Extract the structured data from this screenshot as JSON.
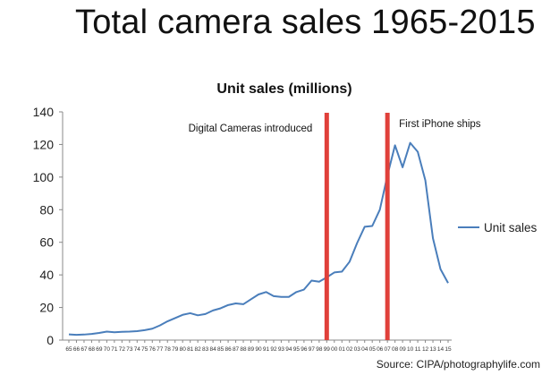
{
  "page_title": "Total camera sales 1965-2015",
  "source": "Source: CIPA/photographylife.com",
  "chart_data": {
    "type": "line",
    "title": "Unit sales (millions)",
    "xlabel": "",
    "ylabel": "",
    "ylim": [
      0,
      140
    ],
    "yticks": [
      0,
      20,
      40,
      60,
      80,
      100,
      120,
      140
    ],
    "grid": false,
    "legend_position": "right",
    "categories": [
      "65",
      "66",
      "67",
      "68",
      "69",
      "70",
      "71",
      "72",
      "73",
      "74",
      "75",
      "76",
      "77",
      "78",
      "79",
      "80",
      "81",
      "82",
      "83",
      "84",
      "85",
      "86",
      "87",
      "88",
      "89",
      "90",
      "91",
      "92",
      "93",
      "94",
      "95",
      "96",
      "97",
      "98",
      "99",
      "00",
      "01",
      "02",
      "03",
      "04",
      "05",
      "06",
      "07",
      "08",
      "09",
      "10",
      "11",
      "12",
      "13",
      "14",
      "15"
    ],
    "series": [
      {
        "name": "Unit sales",
        "color": "#4a7ebb",
        "values": [
          3.5,
          3.2,
          3.4,
          3.8,
          4.4,
          5.2,
          4.8,
          5.1,
          5.2,
          5.5,
          6.1,
          7.0,
          9.0,
          11.5,
          13.5,
          15.5,
          16.5,
          15.2,
          16.0,
          18.2,
          19.5,
          21.5,
          22.5,
          22.0,
          25.0,
          28.0,
          29.5,
          27.0,
          26.5,
          26.5,
          29.5,
          31.0,
          36.5,
          35.8,
          38.5,
          41.5,
          42.0,
          48.0,
          59.5,
          69.5,
          70.0,
          80.0,
          101.0,
          119.5,
          106.0,
          121.0,
          115.5,
          98.0,
          62.5,
          43.5,
          35.0
        ]
      }
    ],
    "annotations": [
      {
        "label": "Digital Cameras introduced",
        "category": "99",
        "color": "#e0403a"
      },
      {
        "label": "First iPhone ships",
        "category": "07",
        "color": "#e0403a"
      }
    ]
  }
}
